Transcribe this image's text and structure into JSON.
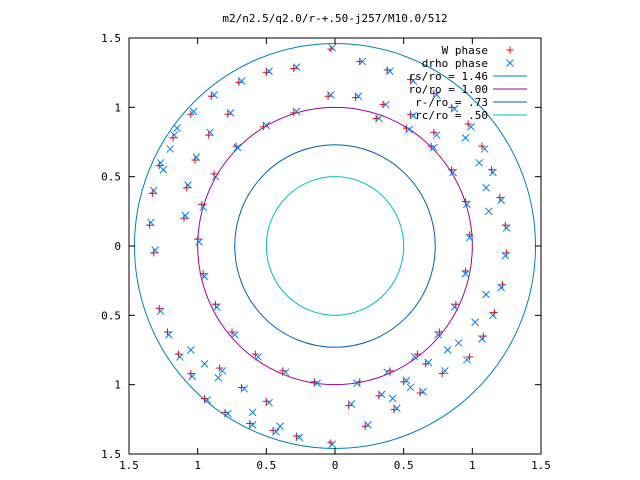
{
  "chart_data": {
    "type": "scatter",
    "title": "m2/n2.5/q2.0/r-+.50-j257/M10.0/512",
    "xlim": [
      -1.5,
      1.5
    ],
    "ylim": [
      -1.5,
      1.5
    ],
    "x_tick_values": [
      -1.5,
      -1,
      -0.5,
      0,
      0.5,
      1,
      1.5
    ],
    "x_tick_labels": [
      "1.5",
      "1",
      "0.5",
      "0",
      "0.5",
      "1",
      "1.5"
    ],
    "y_tick_values": [
      1.5,
      1,
      0.5,
      0,
      -0.5,
      -1,
      -1.5
    ],
    "y_tick_labels": [
      "1.5",
      "1",
      "0.5",
      "0",
      "0.5",
      "1",
      "1.5"
    ],
    "grid": false,
    "legend_position": "top-right",
    "series": [
      {
        "name": "W phase",
        "marker": "plus",
        "color": "#ff0000",
        "points": [
          [
            -0.03,
            1.42
          ],
          [
            0.18,
            1.33
          ],
          [
            0.38,
            1.27
          ],
          [
            0.55,
            1.2
          ],
          [
            0.72,
            1.1
          ],
          [
            0.85,
            1.0
          ],
          [
            0.97,
            0.88
          ],
          [
            1.07,
            0.72
          ],
          [
            1.14,
            0.55
          ],
          [
            1.2,
            0.35
          ],
          [
            1.24,
            0.15
          ],
          [
            1.25,
            -0.05
          ],
          [
            1.22,
            -0.28
          ],
          [
            1.16,
            -0.48
          ],
          [
            1.08,
            -0.65
          ],
          [
            0.98,
            -0.8
          ],
          [
            -1.32,
            -0.05
          ],
          [
            -1.35,
            0.15
          ],
          [
            -1.33,
            0.38
          ],
          [
            -1.28,
            0.58
          ],
          [
            -1.18,
            0.78
          ],
          [
            -1.05,
            0.95
          ],
          [
            -0.9,
            1.08
          ],
          [
            -0.7,
            1.18
          ],
          [
            -0.5,
            1.25
          ],
          [
            -0.3,
            1.28
          ],
          [
            -0.03,
            -1.42
          ],
          [
            0.22,
            -1.3
          ],
          [
            0.43,
            -1.18
          ],
          [
            0.62,
            -1.06
          ],
          [
            0.78,
            -0.92
          ],
          [
            -0.95,
            -1.1
          ],
          [
            -0.8,
            -1.2
          ],
          [
            -0.62,
            -1.28
          ],
          [
            -0.45,
            -1.33
          ],
          [
            -0.28,
            -1.37
          ],
          [
            -1.28,
            -0.45
          ],
          [
            -1.22,
            -0.62
          ],
          [
            -1.14,
            -0.78
          ],
          [
            -1.05,
            -0.92
          ],
          [
            0.3,
            0.92
          ],
          [
            0.52,
            0.85
          ],
          [
            0.7,
            0.72
          ],
          [
            0.85,
            0.55
          ],
          [
            0.95,
            0.32
          ],
          [
            0.98,
            0.08
          ],
          [
            0.95,
            -0.18
          ],
          [
            0.88,
            -0.42
          ],
          [
            0.76,
            -0.62
          ],
          [
            0.6,
            -0.78
          ],
          [
            0.4,
            -0.9
          ],
          [
            0.18,
            -0.98
          ],
          [
            -0.15,
            -0.98
          ],
          [
            -0.38,
            -0.9
          ],
          [
            -0.58,
            -0.78
          ],
          [
            -0.75,
            -0.62
          ],
          [
            -0.87,
            -0.42
          ],
          [
            -0.96,
            -0.2
          ],
          [
            -1.0,
            0.05
          ],
          [
            -0.97,
            0.3
          ],
          [
            -0.88,
            0.52
          ],
          [
            -0.72,
            0.72
          ],
          [
            -0.52,
            0.86
          ],
          [
            -0.3,
            0.96
          ],
          [
            -1.1,
            0.2
          ],
          [
            -1.08,
            0.42
          ],
          [
            -1.02,
            0.62
          ],
          [
            -0.92,
            0.8
          ],
          [
            -0.78,
            0.95
          ],
          [
            -0.05,
            1.08
          ],
          [
            0.15,
            1.07
          ],
          [
            0.35,
            1.02
          ],
          [
            0.55,
            0.95
          ],
          [
            0.72,
            0.82
          ],
          [
            0.1,
            -1.15
          ],
          [
            0.32,
            -1.08
          ],
          [
            0.5,
            -0.98
          ],
          [
            0.66,
            -0.85
          ],
          [
            -0.5,
            -1.12
          ],
          [
            -0.68,
            -1.02
          ],
          [
            -0.84,
            -0.88
          ]
        ]
      },
      {
        "name": "drho phase",
        "marker": "cross",
        "color": "#0080ff",
        "points": [
          [
            -0.02,
            1.43
          ],
          [
            0.2,
            1.33
          ],
          [
            0.4,
            1.26
          ],
          [
            0.57,
            1.19
          ],
          [
            0.74,
            1.09
          ],
          [
            0.87,
            0.99
          ],
          [
            0.99,
            0.86
          ],
          [
            1.09,
            0.7
          ],
          [
            1.15,
            0.53
          ],
          [
            1.21,
            0.33
          ],
          [
            1.25,
            0.13
          ],
          [
            1.24,
            -0.07
          ],
          [
            1.21,
            -0.3
          ],
          [
            1.15,
            -0.5
          ],
          [
            1.07,
            -0.67
          ],
          [
            0.96,
            -0.82
          ],
          [
            -1.31,
            -0.03
          ],
          [
            -1.34,
            0.17
          ],
          [
            -1.32,
            0.4
          ],
          [
            -1.27,
            0.6
          ],
          [
            -1.17,
            0.8
          ],
          [
            -1.03,
            0.97
          ],
          [
            -0.88,
            1.09
          ],
          [
            -0.68,
            1.19
          ],
          [
            -0.48,
            1.26
          ],
          [
            -0.28,
            1.29
          ],
          [
            -0.02,
            -1.43
          ],
          [
            0.24,
            -1.29
          ],
          [
            0.45,
            -1.17
          ],
          [
            0.64,
            -1.05
          ],
          [
            0.8,
            -0.9
          ],
          [
            -0.93,
            -1.11
          ],
          [
            -0.78,
            -1.21
          ],
          [
            -0.6,
            -1.29
          ],
          [
            -0.43,
            -1.34
          ],
          [
            -0.26,
            -1.38
          ],
          [
            -1.27,
            -0.47
          ],
          [
            -1.21,
            -0.64
          ],
          [
            -1.13,
            -0.8
          ],
          [
            -1.04,
            -0.94
          ],
          [
            0.32,
            0.92
          ],
          [
            0.54,
            0.84
          ],
          [
            0.72,
            0.71
          ],
          [
            0.86,
            0.53
          ],
          [
            0.96,
            0.3
          ],
          [
            0.98,
            0.06
          ],
          [
            0.95,
            -0.2
          ],
          [
            0.87,
            -0.44
          ],
          [
            0.75,
            -0.64
          ],
          [
            0.58,
            -0.8
          ],
          [
            0.38,
            -0.91
          ],
          [
            0.16,
            -0.99
          ],
          [
            -0.13,
            -0.99
          ],
          [
            -0.36,
            -0.91
          ],
          [
            -0.56,
            -0.8
          ],
          [
            -0.73,
            -0.64
          ],
          [
            -0.86,
            -0.44
          ],
          [
            -0.95,
            -0.22
          ],
          [
            -0.99,
            0.03
          ],
          [
            -0.96,
            0.28
          ],
          [
            -0.87,
            0.5
          ],
          [
            -0.71,
            0.71
          ],
          [
            -0.5,
            0.87
          ],
          [
            -0.28,
            0.97
          ],
          [
            -1.09,
            0.22
          ],
          [
            -1.07,
            0.44
          ],
          [
            -1.01,
            0.64
          ],
          [
            -0.91,
            0.82
          ],
          [
            -0.76,
            0.96
          ],
          [
            -0.03,
            1.09
          ],
          [
            0.17,
            1.08
          ],
          [
            0.37,
            1.02
          ],
          [
            0.57,
            0.94
          ],
          [
            0.74,
            0.8
          ],
          [
            0.12,
            -1.14
          ],
          [
            0.34,
            -1.07
          ],
          [
            0.52,
            -0.97
          ],
          [
            0.68,
            -0.84
          ],
          [
            -0.48,
            -1.13
          ],
          [
            -0.66,
            -1.03
          ],
          [
            -0.82,
            -0.9
          ],
          [
            0.95,
            0.78
          ],
          [
            1.05,
            0.6
          ],
          [
            1.1,
            0.42
          ],
          [
            1.12,
            0.25
          ],
          [
            1.1,
            -0.35
          ],
          [
            1.02,
            -0.55
          ],
          [
            0.9,
            -0.7
          ],
          [
            0.82,
            -0.75
          ],
          [
            -1.25,
            0.55
          ],
          [
            -1.2,
            0.7
          ],
          [
            -1.15,
            0.85
          ],
          [
            -1.05,
            -0.75
          ],
          [
            -0.95,
            -0.85
          ],
          [
            -0.85,
            -0.95
          ],
          [
            0.55,
            -1.02
          ],
          [
            0.42,
            -1.1
          ],
          [
            -0.6,
            -1.2
          ],
          [
            -0.4,
            -1.3
          ]
        ]
      }
    ],
    "circles": [
      {
        "name": "rs/ro = 1.46",
        "radius": 1.46,
        "color": "#0080c0"
      },
      {
        "name": "ro/ro = 1.00",
        "radius": 1.0,
        "color": "#a000a0"
      },
      {
        "name": "r-/ro = .73",
        "radius": 0.73,
        "color": "#0060c0"
      },
      {
        "name": "rc/ro = .50",
        "radius": 0.5,
        "color": "#00c0c0"
      }
    ]
  }
}
